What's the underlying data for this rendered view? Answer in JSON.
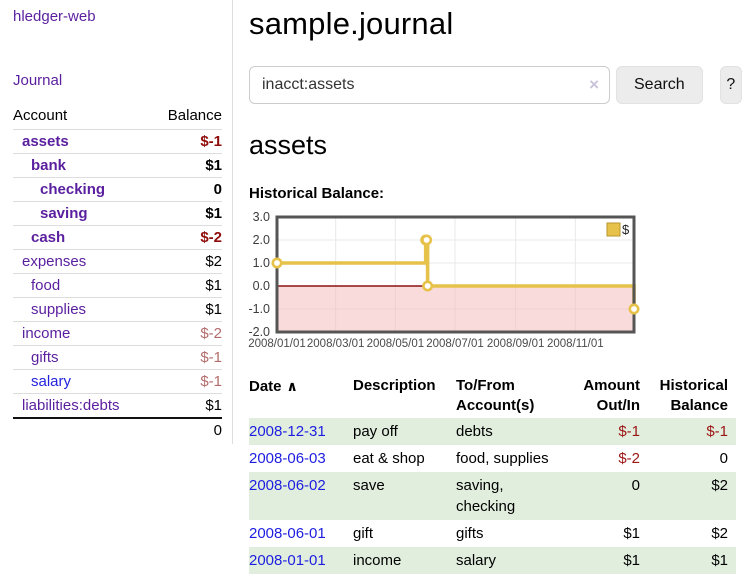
{
  "app": {
    "brand": "hledger-web",
    "nav_journal": "Journal"
  },
  "colors": {
    "purple_link": "#5a1f9e",
    "blue_link": "#2323dd",
    "negative_strong": "#8f0b0b",
    "negative_muted": "#b36b6b",
    "negative_table": "#9d1414",
    "row_stripe_green": "#e1eede",
    "chart_line": "#e7c24b",
    "chart_negative_fill": "#f5b7b7",
    "chart_zero_line": "#8a1212",
    "chart_grid": "#e8e8e8",
    "chart_border": "#555555",
    "chart_label": "#4a4a4a"
  },
  "sidebar": {
    "header": {
      "account": "Account",
      "balance": "Balance"
    },
    "accounts": [
      {
        "name": "assets",
        "balance": "$-1",
        "level": 1,
        "bold": true,
        "blue": false
      },
      {
        "name": "bank",
        "balance": "$1",
        "level": 2,
        "bold": true,
        "blue": false
      },
      {
        "name": "checking",
        "balance": "0",
        "level": 3,
        "bold": true,
        "blue": false
      },
      {
        "name": "saving",
        "balance": "$1",
        "level": 3,
        "bold": true,
        "blue": false
      },
      {
        "name": "cash",
        "balance": "$-2",
        "level": 2,
        "bold": true,
        "blue": false
      },
      {
        "name": "expenses",
        "balance": "$2",
        "level": 1,
        "bold": false,
        "blue": false
      },
      {
        "name": "food",
        "balance": "$1",
        "level": 2,
        "bold": false,
        "blue": false
      },
      {
        "name": "supplies",
        "balance": "$1",
        "level": 2,
        "bold": false,
        "blue": false
      },
      {
        "name": "income",
        "balance": "$-2",
        "level": 1,
        "bold": false,
        "blue": false
      },
      {
        "name": "gifts",
        "balance": "$-1",
        "level": 2,
        "bold": false,
        "blue": false
      },
      {
        "name": "salary",
        "balance": "$-1",
        "level": 2,
        "bold": false,
        "blue": true
      },
      {
        "name": "liabilities:debts",
        "balance": "$1",
        "level": 1,
        "bold": false,
        "blue": false
      }
    ],
    "total": "0"
  },
  "main": {
    "title": "sample.journal",
    "search": {
      "value": "inacct:assets",
      "clear": "×",
      "button": "Search",
      "help": "?"
    },
    "account_title": "assets",
    "chart_label": "Historical Balance:"
  },
  "chart_data": {
    "type": "line",
    "step": true,
    "title": "Historical Balance",
    "series": [
      {
        "name": "$",
        "points": [
          [
            "2008/01/01",
            1
          ],
          [
            "2008/06/01",
            2
          ],
          [
            "2008/06/02",
            2
          ],
          [
            "2008/06/03",
            0
          ],
          [
            "2008/12/31",
            -1
          ]
        ]
      }
    ],
    "xlim": [
      "2008/01/01",
      "2008/12/31"
    ],
    "ylim": [
      -2,
      3
    ],
    "yticks": [
      "3.0",
      "2.0",
      "1.0",
      "0.0",
      "-1.0",
      "-2.0"
    ],
    "xticks": [
      "2008/01/01",
      "2008/03/01",
      "2008/05/01",
      "2008/07/01",
      "2008/09/01",
      "2008/11/01"
    ],
    "legend": {
      "label": "$",
      "position": "top-right"
    },
    "grid": true,
    "negative_region_shaded": true
  },
  "register": {
    "columns": [
      {
        "lines": [
          "Date"
        ],
        "align": "left",
        "sort_icon": "∧"
      },
      {
        "lines": [
          "Description"
        ],
        "align": "left"
      },
      {
        "lines": [
          "To/From",
          "Account(s)"
        ],
        "align": "left"
      },
      {
        "lines": [
          "Amount",
          "Out/In"
        ],
        "align": "right"
      },
      {
        "lines": [
          "Historical",
          "Balance"
        ],
        "align": "right"
      }
    ],
    "rows": [
      {
        "date": "2008-12-31",
        "description": "pay off",
        "accounts": "debts",
        "amount": "$-1",
        "balance": "$-1"
      },
      {
        "date": "2008-06-03",
        "description": "eat & shop",
        "accounts": "food, supplies",
        "amount": "$-2",
        "balance": "0"
      },
      {
        "date": "2008-06-02",
        "description": "save",
        "accounts": "saving, checking",
        "amount": "0",
        "balance": "$2"
      },
      {
        "date": "2008-06-01",
        "description": "gift",
        "accounts": "gifts",
        "amount": "$1",
        "balance": "$2"
      },
      {
        "date": "2008-01-01",
        "description": "income",
        "accounts": "salary",
        "amount": "$1",
        "balance": "$1"
      }
    ]
  }
}
